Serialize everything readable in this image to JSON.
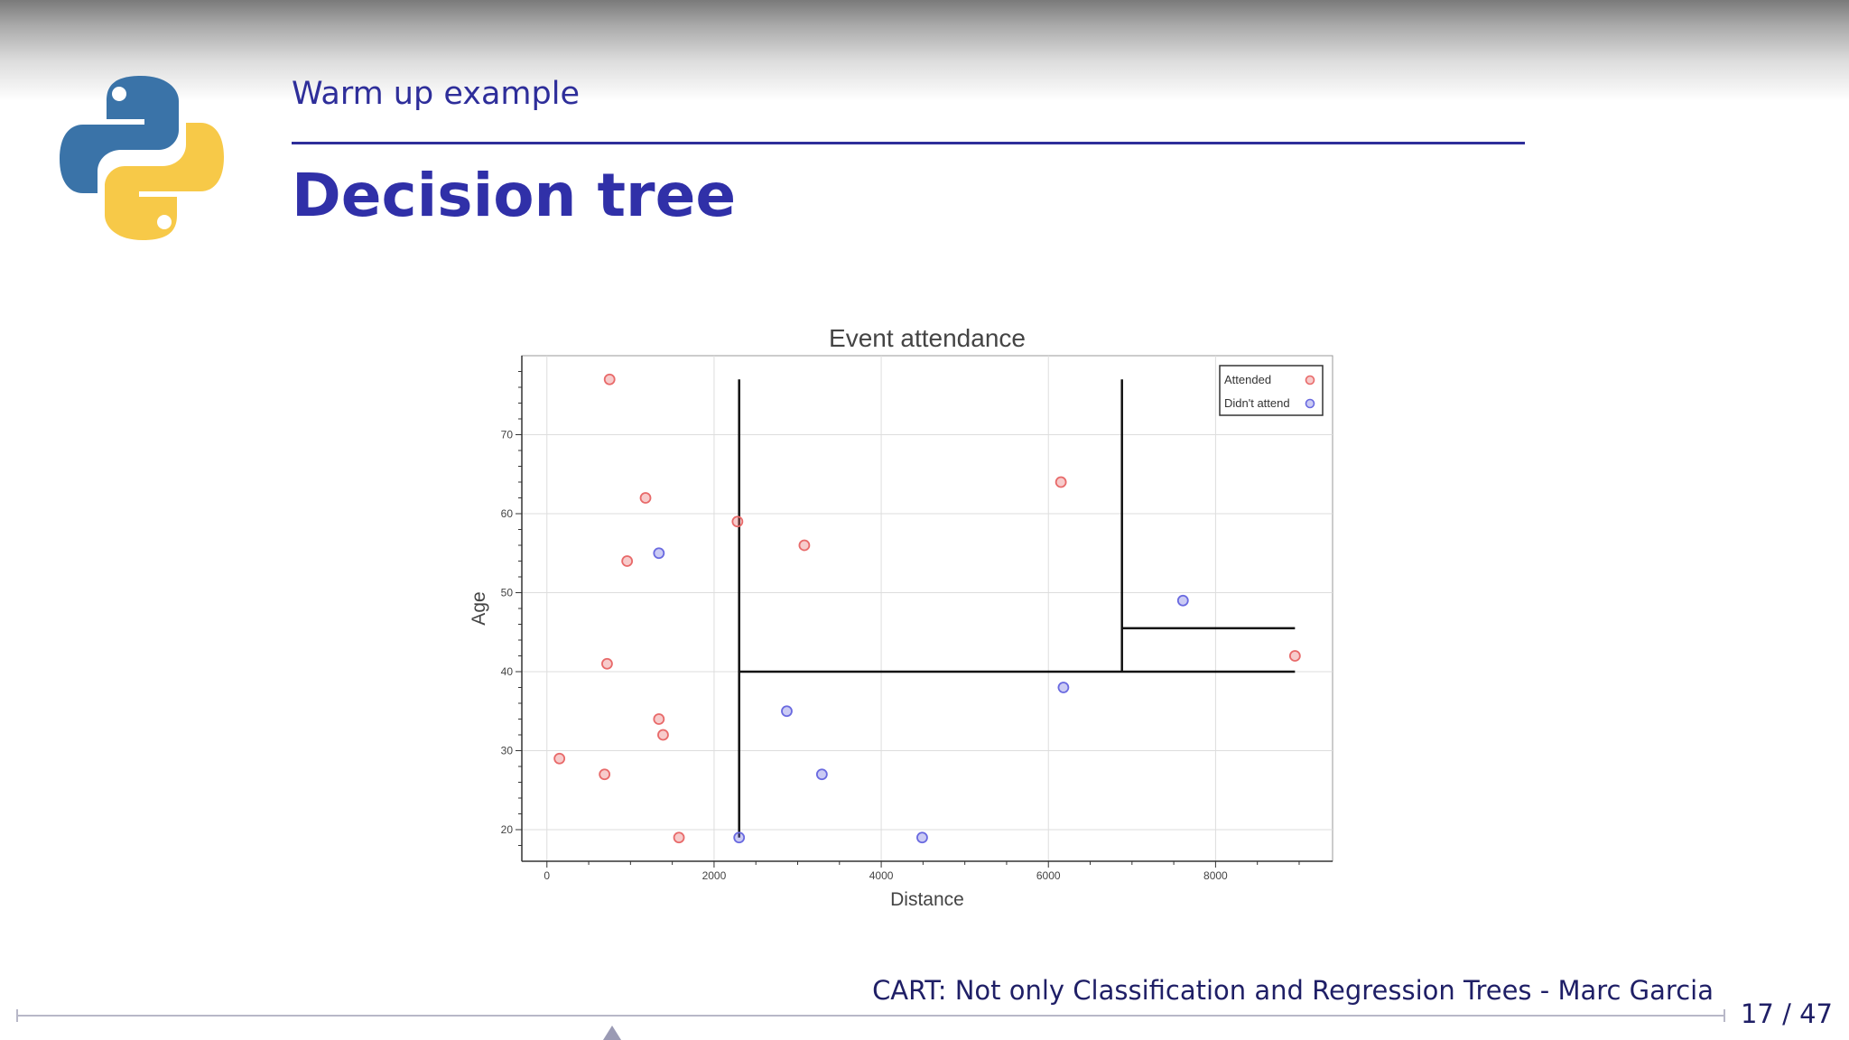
{
  "slide": {
    "section_title": "Warm up example",
    "title": "Decision tree",
    "footer": "CART: Not only Classification and Regression Trees - Marc Garcia",
    "page": "17 / 47"
  },
  "colors": {
    "heading": "#3030a8",
    "attended": "#e86a6a",
    "didnt_attend": "#6a6ae0"
  },
  "chart_data": {
    "type": "scatter",
    "title": "Event attendance",
    "xlabel": "Distance",
    "ylabel": "Age",
    "xlim": [
      -300,
      9400
    ],
    "ylim": [
      16,
      80
    ],
    "xticks": [
      0,
      2000,
      4000,
      6000,
      8000
    ],
    "yticks": [
      20,
      30,
      40,
      50,
      60,
      70
    ],
    "grid": true,
    "legend_position": "top-right",
    "series": [
      {
        "name": "Attended",
        "color": "#e86a6a",
        "points": [
          {
            "x": 750,
            "y": 77
          },
          {
            "x": 1180,
            "y": 62
          },
          {
            "x": 2280,
            "y": 59
          },
          {
            "x": 3080,
            "y": 56
          },
          {
            "x": 960,
            "y": 54
          },
          {
            "x": 720,
            "y": 41
          },
          {
            "x": 1340,
            "y": 34
          },
          {
            "x": 1390,
            "y": 32
          },
          {
            "x": 150,
            "y": 29
          },
          {
            "x": 690,
            "y": 27
          },
          {
            "x": 1580,
            "y": 19
          },
          {
            "x": 6150,
            "y": 64
          },
          {
            "x": 8950,
            "y": 42
          }
        ]
      },
      {
        "name": "Didn't attend",
        "color": "#6a6ae0",
        "points": [
          {
            "x": 1340,
            "y": 55
          },
          {
            "x": 2870,
            "y": 35
          },
          {
            "x": 3290,
            "y": 27
          },
          {
            "x": 2300,
            "y": 19
          },
          {
            "x": 4490,
            "y": 19
          },
          {
            "x": 6180,
            "y": 38
          },
          {
            "x": 7610,
            "y": 49
          }
        ]
      }
    ],
    "decision_boundaries": [
      {
        "x1": 2300,
        "y1": 19,
        "x2": 2300,
        "y2": 77
      },
      {
        "x1": 2300,
        "y1": 40,
        "x2": 8950,
        "y2": 40
      },
      {
        "x1": 6880,
        "y1": 40,
        "x2": 6880,
        "y2": 77
      },
      {
        "x1": 6880,
        "y1": 45.5,
        "x2": 8950,
        "y2": 45.5
      }
    ]
  }
}
